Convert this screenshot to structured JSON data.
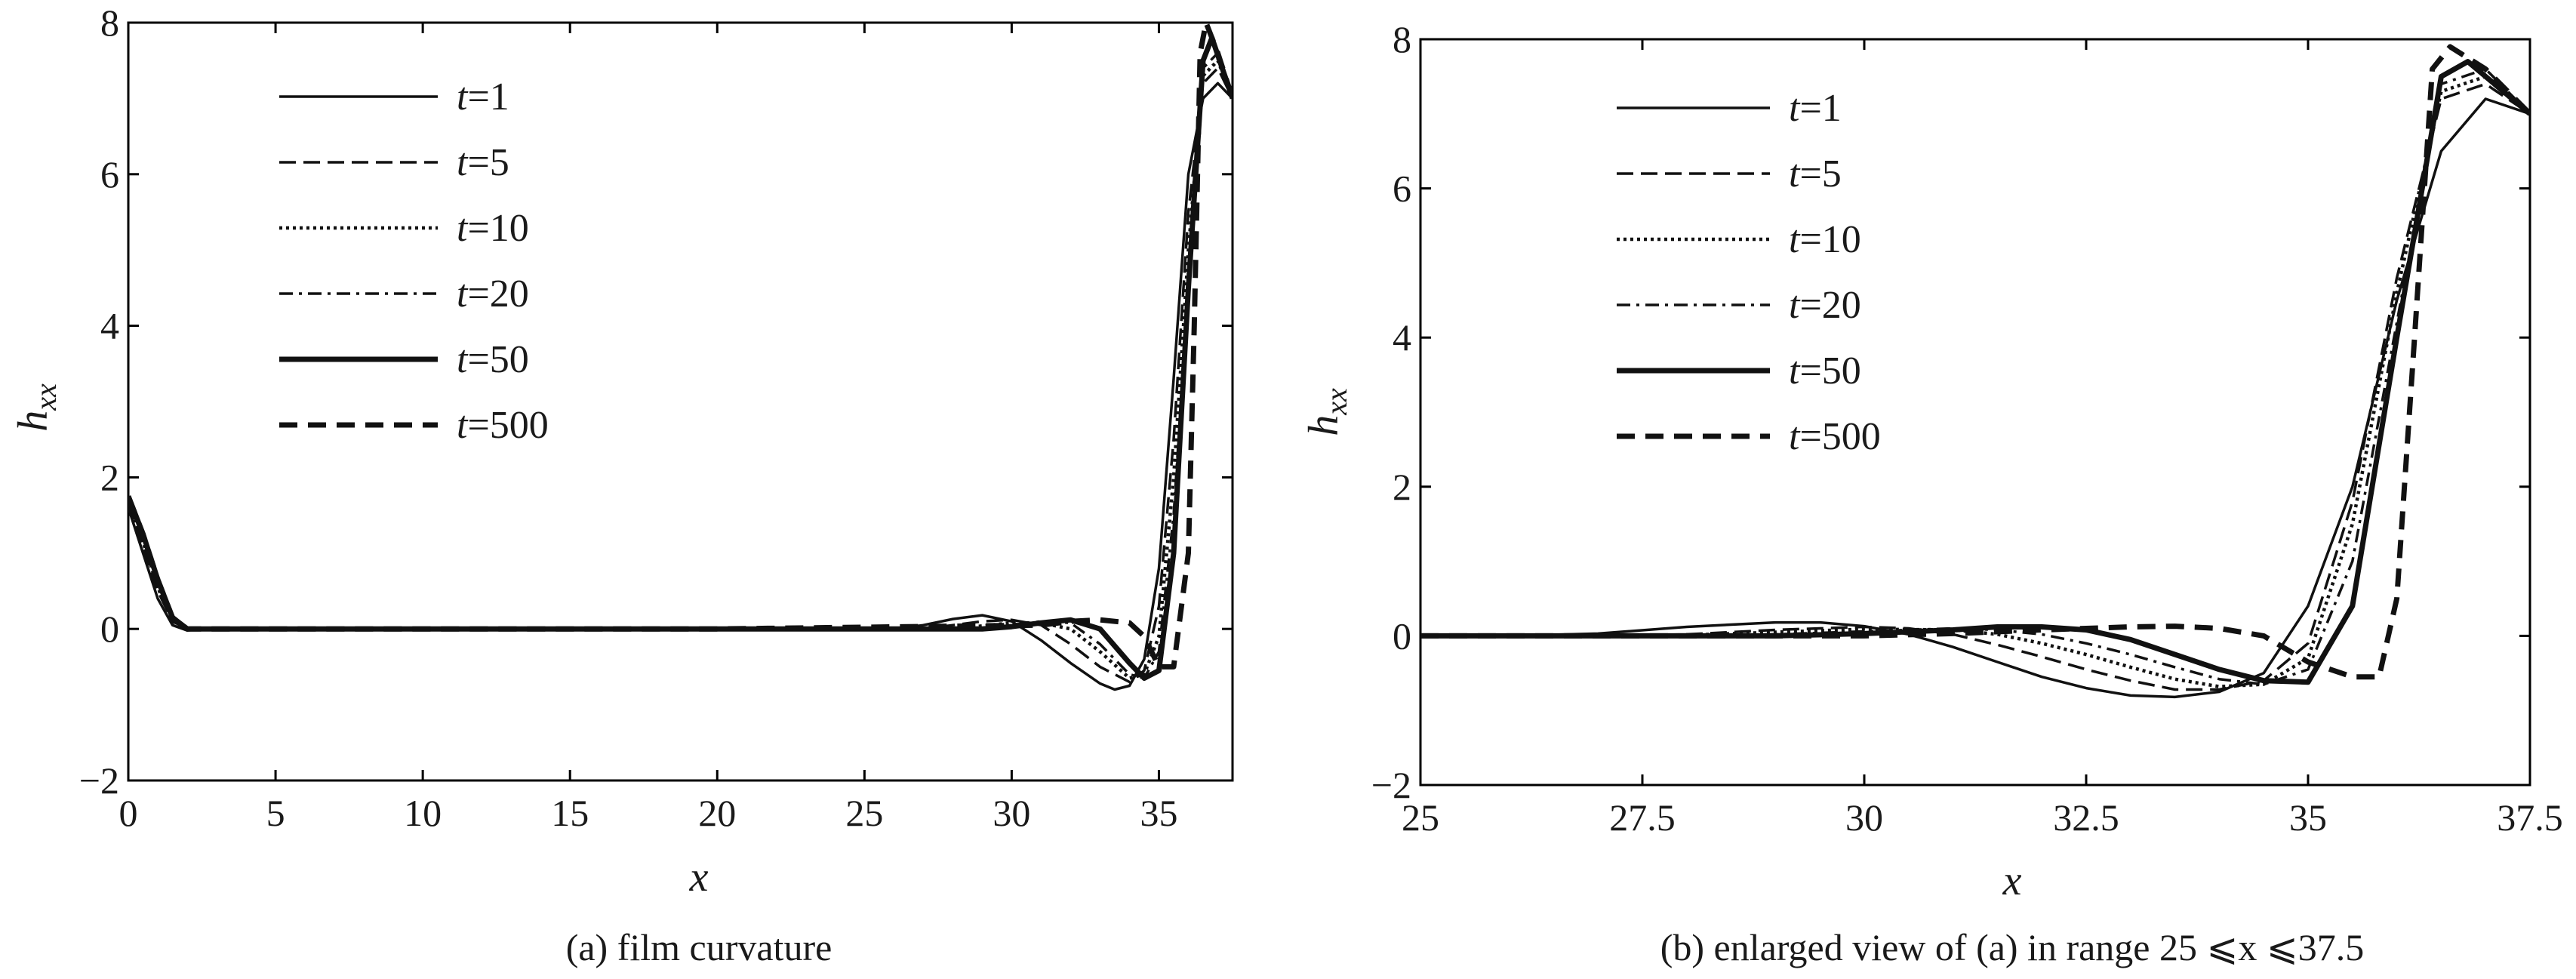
{
  "chart_data": [
    {
      "type": "line",
      "caption": "(a)  film curvature",
      "xlabel": "x",
      "ylabel_main": "h",
      "ylabel_sub": "xx",
      "xlim": [
        0,
        37.5
      ],
      "ylim": [
        -2,
        8
      ],
      "xticks": [
        0,
        5,
        10,
        15,
        20,
        25,
        30,
        35
      ],
      "xtick_labels": [
        "0",
        "5",
        "10",
        "15",
        "20",
        "25",
        "30",
        "35"
      ],
      "yticks": [
        -2,
        0,
        2,
        4,
        6,
        8
      ],
      "ytick_labels": [
        "−2",
        "0",
        "2",
        "4",
        "6",
        "8"
      ],
      "legend_position": "top-left",
      "series": [
        {
          "name": "t=1",
          "legend_t": "t",
          "legend_v": "=1",
          "style": "thin-solid",
          "x": [
            0,
            0.5,
            1,
            1.5,
            2,
            2.5,
            3,
            10,
            20,
            26,
            27,
            28,
            29,
            30,
            31,
            32,
            33,
            33.5,
            34,
            34.5,
            35,
            35.5,
            36,
            36.5,
            37,
            37.5
          ],
          "y": [
            1.6,
            1.0,
            0.4,
            0.05,
            -0.02,
            0,
            0,
            0,
            0,
            0,
            0.05,
            0.13,
            0.18,
            0.1,
            -0.15,
            -0.45,
            -0.72,
            -0.8,
            -0.75,
            -0.4,
            0.8,
            3.3,
            6.0,
            7.0,
            7.2,
            7.0
          ]
        },
        {
          "name": "t=5",
          "legend_t": "t",
          "legend_v": "=5",
          "style": "dashed",
          "x": [
            0,
            0.5,
            1,
            1.5,
            2,
            2.5,
            3,
            10,
            20,
            27,
            28,
            29,
            30,
            31,
            32,
            33,
            34,
            34.5,
            35,
            35.5,
            36,
            36.5,
            37,
            37.5
          ],
          "y": [
            1.65,
            1.1,
            0.5,
            0.1,
            0,
            0,
            0,
            0,
            0,
            0,
            0.05,
            0.1,
            0.12,
            0.05,
            -0.2,
            -0.5,
            -0.7,
            -0.55,
            0.3,
            2.5,
            5.5,
            7.2,
            7.4,
            7.0
          ]
        },
        {
          "name": "t=10",
          "legend_t": "t",
          "legend_v": "=10",
          "style": "dotted",
          "x": [
            0,
            0.5,
            1,
            1.5,
            2,
            2.5,
            3,
            10,
            20,
            28,
            29,
            30,
            31,
            32,
            33,
            34,
            34.5,
            35,
            35.5,
            36,
            36.5,
            37,
            37.5
          ],
          "y": [
            1.7,
            1.15,
            0.55,
            0.1,
            0,
            0,
            0,
            0,
            0,
            0,
            0.04,
            0.08,
            0.08,
            0,
            -0.3,
            -0.65,
            -0.6,
            -0.1,
            2.0,
            5.0,
            7.3,
            7.5,
            7.0
          ]
        },
        {
          "name": "t=20",
          "legend_t": "t",
          "legend_v": "=20",
          "style": "dashdot",
          "x": [
            0,
            0.5,
            1,
            1.5,
            2,
            2.5,
            3,
            10,
            20,
            29,
            30,
            31,
            32,
            33,
            34,
            34.5,
            35,
            35.5,
            36,
            36.5,
            37,
            37.5
          ],
          "y": [
            1.7,
            1.2,
            0.6,
            0.12,
            0,
            0,
            0,
            0,
            0,
            0,
            0.05,
            0.1,
            0.08,
            -0.2,
            -0.6,
            -0.65,
            -0.3,
            1.5,
            4.5,
            7.4,
            7.6,
            7.0
          ]
        },
        {
          "name": "t=50",
          "legend_t": "t",
          "legend_v": "=50",
          "style": "thick-solid",
          "x": [
            0,
            0.5,
            1,
            1.5,
            2,
            2.5,
            3,
            10,
            20,
            29,
            30,
            31,
            32,
            33,
            34,
            34.5,
            35,
            35.5,
            36,
            36.5,
            36.8,
            37.5
          ],
          "y": [
            1.75,
            1.25,
            0.65,
            0.15,
            0,
            0,
            0,
            0,
            0,
            0,
            0.03,
            0.08,
            0.12,
            0,
            -0.45,
            -0.65,
            -0.55,
            1.0,
            4.5,
            7.5,
            7.8,
            7.0
          ]
        },
        {
          "name": "t=500",
          "legend_t": "t",
          "legend_v": "=500",
          "style": "thick-dashed",
          "x": [
            0,
            0.5,
            1,
            1.5,
            2,
            2.5,
            3,
            10,
            20,
            31,
            32,
            33,
            34,
            34.5,
            35,
            35.5,
            36,
            36.2,
            36.4,
            36.6,
            37,
            37.5
          ],
          "y": [
            1.75,
            1.25,
            0.65,
            0.15,
            0,
            0,
            0,
            0,
            0,
            0.05,
            0.1,
            0.12,
            0.08,
            -0.1,
            -0.5,
            -0.5,
            1.0,
            4.0,
            7.6,
            8.0,
            7.6,
            7.0
          ]
        }
      ]
    },
    {
      "type": "line",
      "caption": "(b)  enlarged view of  (a) in range 25 ⩽x ⩽37.5",
      "xlabel": "x",
      "ylabel_main": "h",
      "ylabel_sub": "xx",
      "xlim": [
        25,
        37.5
      ],
      "ylim": [
        -2,
        8
      ],
      "xticks": [
        25,
        27.5,
        30,
        32.5,
        35,
        37.5
      ],
      "xtick_labels": [
        "25",
        "27.5",
        "30",
        "32.5",
        "35",
        "37.5"
      ],
      "yticks": [
        -2,
        0,
        2,
        4,
        6,
        8
      ],
      "ytick_labels": [
        "−2",
        "0",
        "2",
        "4",
        "6",
        "8"
      ],
      "legend_position": "top-left",
      "series": [
        {
          "name": "t=1",
          "legend_t": "t",
          "legend_v": "=1",
          "style": "thin-solid",
          "x": [
            25,
            26,
            27,
            28,
            29,
            29.5,
            30,
            30.5,
            31,
            31.5,
            32,
            32.5,
            33,
            33.5,
            34,
            34.5,
            35,
            35.5,
            36,
            36.5,
            37,
            37.5
          ],
          "y": [
            0,
            0,
            0.03,
            0.12,
            0.18,
            0.18,
            0.13,
            0.02,
            -0.15,
            -0.35,
            -0.55,
            -0.7,
            -0.8,
            -0.82,
            -0.75,
            -0.5,
            0.4,
            2.0,
            4.5,
            6.5,
            7.2,
            7.0
          ]
        },
        {
          "name": "t=5",
          "legend_t": "t",
          "legend_v": "=5",
          "style": "dashed",
          "x": [
            25,
            27,
            28,
            29,
            30,
            30.5,
            31,
            31.5,
            32,
            32.5,
            33,
            33.5,
            34,
            34.5,
            35,
            35.5,
            36,
            36.5,
            37,
            37.5
          ],
          "y": [
            0,
            0,
            0.02,
            0.08,
            0.12,
            0.1,
            0.02,
            -0.12,
            -0.28,
            -0.45,
            -0.6,
            -0.72,
            -0.72,
            -0.6,
            -0.1,
            1.8,
            4.8,
            7.2,
            7.4,
            7.0
          ]
        },
        {
          "name": "t=10",
          "legend_t": "t",
          "legend_v": "=10",
          "style": "dotted",
          "x": [
            25,
            27,
            28,
            29,
            30,
            31,
            31.5,
            32,
            32.5,
            33,
            33.5,
            34,
            34.5,
            35,
            35.5,
            36,
            36.5,
            37,
            37.5
          ],
          "y": [
            0,
            0,
            0.01,
            0.05,
            0.09,
            0.08,
            0.02,
            -0.1,
            -0.25,
            -0.42,
            -0.58,
            -0.68,
            -0.65,
            -0.3,
            1.5,
            4.6,
            7.3,
            7.5,
            7.0
          ]
        },
        {
          "name": "t=20",
          "legend_t": "t",
          "legend_v": "=20",
          "style": "dashdot",
          "x": [
            25,
            28,
            29,
            30,
            31,
            31.5,
            32,
            32.5,
            33,
            33.5,
            34,
            34.5,
            35,
            35.5,
            36,
            36.5,
            37,
            37.5
          ],
          "y": [
            0,
            0,
            0.02,
            0.06,
            0.1,
            0.08,
            0.02,
            -0.1,
            -0.25,
            -0.42,
            -0.58,
            -0.65,
            -0.45,
            1.0,
            4.2,
            7.4,
            7.6,
            7.0
          ]
        },
        {
          "name": "t=50",
          "legend_t": "t",
          "legend_v": "=50",
          "style": "thick-solid",
          "x": [
            25,
            29,
            30,
            31,
            31.5,
            32,
            32.5,
            33,
            33.5,
            34,
            34.5,
            35,
            35.5,
            36,
            36.5,
            36.8,
            37.5
          ],
          "y": [
            0,
            0,
            0.03,
            0.08,
            0.12,
            0.12,
            0.08,
            -0.05,
            -0.25,
            -0.45,
            -0.6,
            -0.62,
            0.4,
            4.0,
            7.5,
            7.7,
            7.0
          ]
        },
        {
          "name": "t=500",
          "legend_t": "t",
          "legend_v": "=500",
          "style": "thick-dashed",
          "x": [
            25,
            30,
            31,
            32,
            32.5,
            33,
            33.5,
            34,
            34.5,
            35,
            35.5,
            35.8,
            36,
            36.2,
            36.4,
            36.6,
            37,
            37.5
          ],
          "y": [
            0,
            0,
            0.03,
            0.08,
            0.1,
            0.12,
            0.13,
            0.1,
            0,
            -0.35,
            -0.55,
            -0.55,
            0.5,
            4.0,
            7.6,
            7.9,
            7.6,
            7.0
          ]
        }
      ]
    }
  ]
}
